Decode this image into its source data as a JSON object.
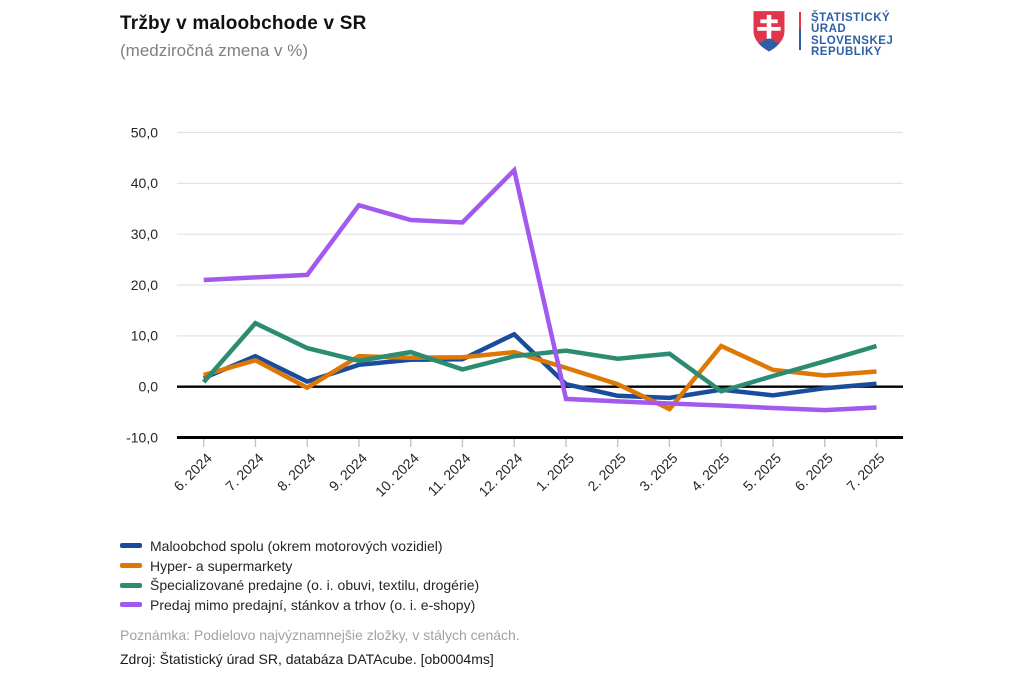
{
  "header": {
    "title": "Tržby v maloobchode v SR",
    "subtitle": "(medziročná zmena v %)"
  },
  "logo": {
    "emblem_icon": "slovak-coat-of-arms",
    "lines": [
      "ŠTATISTICKÝ",
      "ÚRAD",
      "SLOVENSKEJ",
      "REPUBLIKY"
    ],
    "text_color": "#2e5fa6",
    "emblem_red": "#e0354b",
    "emblem_white": "#ffffff",
    "emblem_blue": "#2e5fa6"
  },
  "chart_data": {
    "type": "line",
    "categories": [
      "6. 2024",
      "7. 2024",
      "8. 2024",
      "9. 2024",
      "10. 2024",
      "11. 2024",
      "12. 2024",
      "1. 2025",
      "2. 2025",
      "3. 2025",
      "4. 2025",
      "5. 2025",
      "6. 2025",
      "7. 2025"
    ],
    "series": [
      {
        "name": "Maloobchod spolu (okrem motorových vozidiel)",
        "color": "#1a4c9d",
        "values": [
          1.7,
          6.0,
          1.0,
          4.3,
          5.3,
          5.4,
          10.3,
          0.5,
          -1.8,
          -2.2,
          -0.6,
          -1.7,
          -0.3,
          0.6
        ]
      },
      {
        "name": "Hyper- a supermarkety",
        "color": "#dd7807",
        "values": [
          2.3,
          5.2,
          -0.2,
          6.0,
          5.7,
          5.8,
          6.8,
          3.7,
          0.5,
          -4.4,
          8.0,
          3.3,
          2.2,
          3.0
        ]
      },
      {
        "name": "Špecializované predajne (o. i. obuvi, textilu, drogérie)",
        "color": "#2b8c72",
        "values": [
          0.9,
          12.5,
          7.6,
          5.1,
          6.8,
          3.4,
          6.0,
          7.1,
          5.5,
          6.5,
          -0.9,
          2.1,
          5.0,
          8.0
        ]
      },
      {
        "name": "Predaj mimo predajní, stánkov a trhov (o. i. e-shopy)",
        "color": "#a159ee",
        "values": [
          21.0,
          21.5,
          22.0,
          35.7,
          32.8,
          32.3,
          42.6,
          -2.4,
          -2.9,
          -3.3,
          -3.7,
          -4.2,
          -4.6,
          -4.1
        ]
      }
    ],
    "ylim": [
      -10,
      50
    ],
    "ytick_step": 10,
    "ytick_labels": [
      "50,0",
      "40,0",
      "30,0",
      "20,0",
      "10,0",
      "0,0",
      "-10,0"
    ],
    "grid": true,
    "legend_position": "bottom-left",
    "colors": {
      "gridline": "#e2e2e2",
      "zero_line": "#000000",
      "axis_line": "#000000",
      "tick": "#c4c4c4",
      "tick_label": "#262626"
    }
  },
  "footer": {
    "note": "Poznámka: Podielovo najvýznamnejšie zložky, v stálych cenách.",
    "source": "Zdroj: Štatistický úrad SR, databáza DATAcube. [ob0004ms]"
  }
}
